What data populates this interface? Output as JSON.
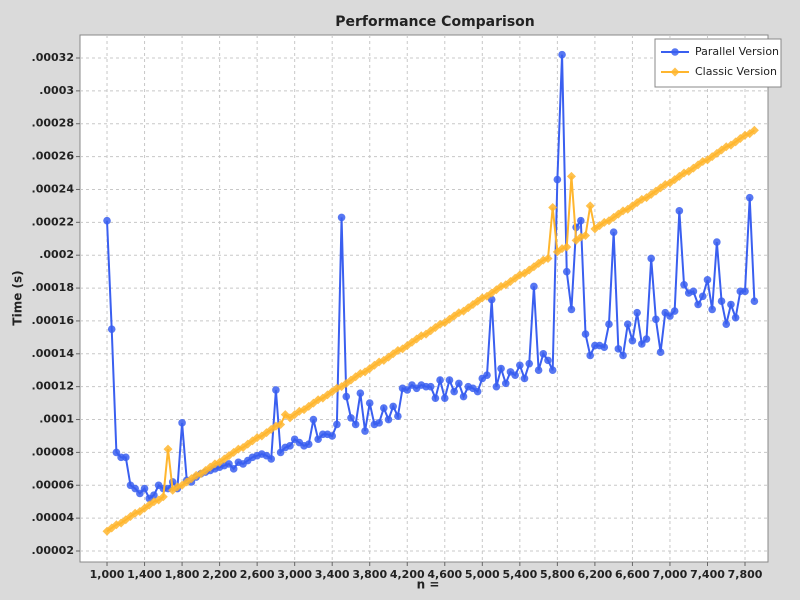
{
  "chart_data": {
    "type": "line",
    "title": "Performance Comparison",
    "xlabel": "n =",
    "ylabel": "Time (s)",
    "x": [
      1000,
      1050,
      1100,
      1150,
      1200,
      1250,
      1300,
      1350,
      1400,
      1450,
      1500,
      1550,
      1600,
      1650,
      1700,
      1750,
      1800,
      1850,
      1900,
      1950,
      2000,
      2050,
      2100,
      2150,
      2200,
      2250,
      2300,
      2350,
      2400,
      2450,
      2500,
      2550,
      2600,
      2650,
      2700,
      2750,
      2800,
      2850,
      2900,
      2950,
      3000,
      3050,
      3100,
      3150,
      3200,
      3250,
      3300,
      3350,
      3400,
      3450,
      3500,
      3550,
      3600,
      3650,
      3700,
      3750,
      3800,
      3850,
      3900,
      3950,
      4000,
      4050,
      4100,
      4150,
      4200,
      4250,
      4300,
      4350,
      4400,
      4450,
      4500,
      4550,
      4600,
      4650,
      4700,
      4750,
      4800,
      4850,
      4900,
      4950,
      5000,
      5050,
      5100,
      5150,
      5200,
      5250,
      5300,
      5350,
      5400,
      5450,
      5500,
      5550,
      5600,
      5650,
      5700,
      5750,
      5800,
      5850,
      5900,
      5950,
      6000,
      6050,
      6100,
      6150,
      6200,
      6250,
      6300,
      6350,
      6400,
      6450,
      6500,
      6550,
      6600,
      6650,
      6700,
      6750,
      6800,
      6850,
      6900,
      6950,
      7000,
      7050,
      7100,
      7150,
      7200,
      7250,
      7300,
      7350,
      7400,
      7450,
      7500,
      7550,
      7600,
      7650,
      7700,
      7750,
      7800,
      7850,
      7900
    ],
    "series": [
      {
        "name": "Parallel Version",
        "color": "#3a5ff0",
        "marker": "circle",
        "values": [
          0.000221,
          0.000155,
          8e-05,
          7.7e-05,
          7.7e-05,
          6e-05,
          5.8e-05,
          5.5e-05,
          5.8e-05,
          5.2e-05,
          5.4e-05,
          6e-05,
          5.8e-05,
          5.8e-05,
          6.2e-05,
          5.8e-05,
          9.8e-05,
          6.3e-05,
          6.2e-05,
          6.5e-05,
          6.7e-05,
          6.8e-05,
          6.9e-05,
          7e-05,
          7.1e-05,
          7.2e-05,
          7.3e-05,
          7e-05,
          7.4e-05,
          7.3e-05,
          7.5e-05,
          7.7e-05,
          7.8e-05,
          7.9e-05,
          7.8e-05,
          7.6e-05,
          0.000118,
          8e-05,
          8.3e-05,
          8.4e-05,
          8.8e-05,
          8.6e-05,
          8.4e-05,
          8.5e-05,
          0.0001,
          8.8e-05,
          9.1e-05,
          9.1e-05,
          9e-05,
          9.7e-05,
          0.000223,
          0.000114,
          0.000101,
          9.7e-05,
          0.000116,
          9.3e-05,
          0.00011,
          9.7e-05,
          9.8e-05,
          0.000107,
          0.0001,
          0.000108,
          0.000102,
          0.000119,
          0.000118,
          0.000121,
          0.000119,
          0.000121,
          0.00012,
          0.00012,
          0.000113,
          0.000124,
          0.000113,
          0.000124,
          0.000117,
          0.000122,
          0.000114,
          0.00012,
          0.000119,
          0.000117,
          0.000125,
          0.000127,
          0.000173,
          0.00012,
          0.000131,
          0.000122,
          0.000129,
          0.000127,
          0.000133,
          0.000125,
          0.000134,
          0.000181,
          0.00013,
          0.00014,
          0.000136,
          0.00013,
          0.000246,
          0.000322,
          0.00019,
          0.000167,
          0.000217,
          0.000221,
          0.000152,
          0.000139,
          0.000145,
          0.000145,
          0.000144,
          0.000158,
          0.000214,
          0.000143,
          0.000139,
          0.000158,
          0.000148,
          0.000165,
          0.000146,
          0.000149,
          0.000198,
          0.000161,
          0.000141,
          0.000165,
          0.000163,
          0.000166,
          0.000227,
          0.000182,
          0.000177,
          0.000178,
          0.00017,
          0.000175,
          0.000185,
          0.000167,
          0.000208,
          0.000172,
          0.000158,
          0.00017,
          0.000162,
          0.000178,
          0.000178,
          0.000235,
          0.000172
        ]
      },
      {
        "name": "Classic Version",
        "color": "#ffb62e",
        "marker": "diamond",
        "values": [
          3.2e-05,
          3.4e-05,
          3.6e-05,
          3.7e-05,
          3.9e-05,
          4.1e-05,
          4.3e-05,
          4.4e-05,
          4.6e-05,
          4.8e-05,
          5e-05,
          5.1e-05,
          5.3e-05,
          8.2e-05,
          5.7e-05,
          5.9e-05,
          6e-05,
          6.2e-05,
          6.4e-05,
          6.6e-05,
          6.7e-05,
          6.9e-05,
          7.1e-05,
          7.3e-05,
          7.4e-05,
          7.6e-05,
          7.8e-05,
          8e-05,
          8.2e-05,
          8.3e-05,
          8.5e-05,
          8.7e-05,
          8.9e-05,
          9e-05,
          9.2e-05,
          9.4e-05,
          9.6e-05,
          9.7e-05,
          0.000103,
          0.000101,
          0.000103,
          0.000105,
          0.000106,
          0.000108,
          0.00011,
          0.000112,
          0.000113,
          0.000115,
          0.000117,
          0.000119,
          0.00012,
          0.000122,
          0.000124,
          0.000126,
          0.000128,
          0.000129,
          0.000131,
          0.000133,
          0.000135,
          0.000136,
          0.000138,
          0.00014,
          0.000142,
          0.000143,
          0.000145,
          0.000147,
          0.000149,
          0.000151,
          0.000152,
          0.000154,
          0.000156,
          0.000158,
          0.000159,
          0.000161,
          0.000163,
          0.000165,
          0.000166,
          0.000168,
          0.00017,
          0.000172,
          0.000174,
          0.000175,
          0.000177,
          0.000179,
          0.000181,
          0.000182,
          0.000184,
          0.000186,
          0.000188,
          0.000189,
          0.000191,
          0.000193,
          0.000195,
          0.000197,
          0.000198,
          0.000229,
          0.000202,
          0.000204,
          0.000205,
          0.000248,
          0.000209,
          0.000211,
          0.000212,
          0.00023,
          0.000216,
          0.000218,
          0.00022,
          0.000221,
          0.000223,
          0.000225,
          0.000227,
          0.000228,
          0.00023,
          0.000232,
          0.000234,
          0.000235,
          0.000237,
          0.000239,
          0.000241,
          0.000243,
          0.000244,
          0.000246,
          0.000248,
          0.00025,
          0.000251,
          0.000253,
          0.000255,
          0.000257,
          0.000258,
          0.00026,
          0.000262,
          0.000264,
          0.000266,
          0.000267,
          0.000269,
          0.000271,
          0.000273,
          0.000274,
          0.000276
        ]
      }
    ],
    "xlim": [
      712,
      8045
    ],
    "xticks": [
      {
        "value": 1000,
        "label": "1,000"
      },
      {
        "value": 1400,
        "label": "1,400"
      },
      {
        "value": 1800,
        "label": "1,800"
      },
      {
        "value": 2200,
        "label": "2,200"
      },
      {
        "value": 2600,
        "label": "2,600"
      },
      {
        "value": 3000,
        "label": "3,000"
      },
      {
        "value": 3400,
        "label": "3,400"
      },
      {
        "value": 3800,
        "label": "3,800"
      },
      {
        "value": 4200,
        "label": "4,200"
      },
      {
        "value": 4600,
        "label": "4,600"
      },
      {
        "value": 5000,
        "label": "5,000"
      },
      {
        "value": 5400,
        "label": "5,400"
      },
      {
        "value": 5800,
        "label": "5,800"
      },
      {
        "value": 6200,
        "label": "6,200"
      },
      {
        "value": 6600,
        "label": "6,600"
      },
      {
        "value": 7000,
        "label": "7,000"
      },
      {
        "value": 7400,
        "label": "7,400"
      },
      {
        "value": 7800,
        "label": "7,800"
      }
    ],
    "ylim": [
      1.33e-05,
      0.000334
    ],
    "yticks": [
      {
        "value": 2e-05,
        "label": ".00002"
      },
      {
        "value": 4e-05,
        "label": ".00004"
      },
      {
        "value": 6e-05,
        "label": ".00006"
      },
      {
        "value": 8e-05,
        "label": ".00008"
      },
      {
        "value": 0.0001,
        "label": ".0001"
      },
      {
        "value": 0.00012,
        "label": ".00012"
      },
      {
        "value": 0.00014,
        "label": ".00014"
      },
      {
        "value": 0.00016,
        "label": ".00016"
      },
      {
        "value": 0.00018,
        "label": ".00018"
      },
      {
        "value": 0.0002,
        "label": ".0002"
      },
      {
        "value": 0.00022,
        "label": ".00022"
      },
      {
        "value": 0.00024,
        "label": ".00024"
      },
      {
        "value": 0.00026,
        "label": ".00026"
      },
      {
        "value": 0.00028,
        "label": ".00028"
      },
      {
        "value": 0.0003,
        "label": ".0003"
      },
      {
        "value": 0.00032,
        "label": ".00032"
      }
    ],
    "grid": true,
    "legend": "top-right"
  }
}
